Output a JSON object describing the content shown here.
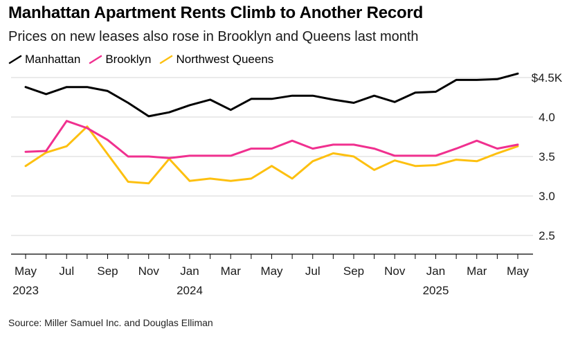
{
  "chart_data": {
    "type": "line",
    "title": "Manhattan Apartment Rents Climb to Another Record",
    "subtitle": "Prices on new leases also rose in Brooklyn and Queens last month",
    "source": "Source: Miller Samuel Inc. and Douglas Elliman",
    "xlabel": "",
    "ylabel": "",
    "ylim": [
      2.3,
      4.6
    ],
    "yticks": [
      2.5,
      3.0,
      3.5,
      4.0,
      4.5
    ],
    "ytick_labels": [
      "2.5",
      "3.0",
      "3.5",
      "4.0",
      "$4.5K"
    ],
    "x_month_labels": [
      "May",
      "Jul",
      "Sep",
      "Nov",
      "Jan",
      "Mar",
      "May",
      "Jul",
      "Sep",
      "Nov",
      "Jan",
      "Mar",
      "May"
    ],
    "x_month_index": [
      0,
      2,
      4,
      6,
      8,
      10,
      12,
      14,
      16,
      18,
      20,
      22,
      24
    ],
    "x_year_labels": [
      {
        "label": "2023",
        "index": 0
      },
      {
        "label": "2024",
        "index": 8
      },
      {
        "label": "2025",
        "index": 20
      }
    ],
    "legend_position": "top-left",
    "series": [
      {
        "name": "Manhattan",
        "color": "#000000",
        "values": [
          4.38,
          4.29,
          4.38,
          4.38,
          4.33,
          4.18,
          4.01,
          4.06,
          4.15,
          4.22,
          4.09,
          4.23,
          4.23,
          4.27,
          4.27,
          4.22,
          4.18,
          4.27,
          4.19,
          4.31,
          4.32,
          4.47,
          4.47,
          4.48,
          4.55
        ]
      },
      {
        "name": "Brooklyn",
        "color": "#f0308f",
        "values": [
          3.56,
          3.57,
          3.95,
          3.86,
          3.71,
          3.5,
          3.5,
          3.48,
          3.51,
          3.51,
          3.51,
          3.6,
          3.6,
          3.7,
          3.6,
          3.65,
          3.65,
          3.6,
          3.51,
          3.51,
          3.51,
          3.6,
          3.7,
          3.6,
          3.65
        ]
      },
      {
        "name": "Northwest Queens",
        "color": "#fdc010",
        "values": [
          3.38,
          3.55,
          3.63,
          3.88,
          3.53,
          3.18,
          3.16,
          3.47,
          3.19,
          3.22,
          3.19,
          3.22,
          3.38,
          3.22,
          3.44,
          3.54,
          3.5,
          3.33,
          3.45,
          3.38,
          3.39,
          3.46,
          3.44,
          3.54,
          3.63
        ]
      }
    ]
  }
}
